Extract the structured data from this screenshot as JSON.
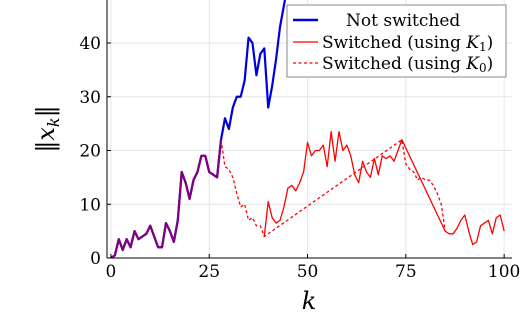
{
  "chart_data": {
    "type": "line",
    "xlabel": "k",
    "ylabel": "‖x_k‖",
    "xlim": [
      -1,
      102
    ],
    "ylim": [
      0,
      48
    ],
    "xticks": [
      0,
      25,
      50,
      75,
      100
    ],
    "yticks": [
      0,
      10,
      20,
      30,
      40
    ],
    "grid": true,
    "legend_position": "top-right",
    "series": [
      {
        "name": "Not switched",
        "color": "#0000dd",
        "style": "solid",
        "x": [
          0,
          1,
          2,
          3,
          4,
          5,
          6,
          7,
          8,
          9,
          10,
          11,
          12,
          13,
          14,
          15,
          16,
          17,
          18,
          19,
          20,
          21,
          22,
          23,
          24,
          25,
          26,
          27,
          28,
          29,
          30,
          31,
          32,
          33,
          34,
          35,
          36,
          37,
          38,
          39,
          40,
          41,
          42,
          43,
          44,
          45
        ],
        "y": [
          0,
          0.5,
          3.5,
          1.5,
          3.5,
          2,
          5,
          3.5,
          4,
          4.5,
          6,
          4,
          2,
          2,
          6.5,
          5,
          3,
          7,
          16,
          14,
          11,
          14.5,
          16,
          19,
          19,
          16,
          15.5,
          15,
          22,
          26,
          24,
          28,
          30,
          30,
          33,
          41,
          40,
          34,
          38,
          39,
          28,
          32,
          37,
          43,
          47,
          51
        ]
      },
      {
        "name": "Switched (using K1)",
        "color": "#ff0000",
        "style": "solid",
        "x": [
          39,
          40,
          41,
          42,
          43,
          44,
          45,
          46,
          47,
          48,
          49,
          50,
          51,
          52,
          53,
          54,
          55,
          56,
          57,
          58,
          59,
          60,
          61,
          62,
          63,
          64,
          65,
          66,
          67,
          68,
          69,
          70,
          71,
          72,
          73,
          74,
          85,
          86,
          87,
          88,
          89,
          90,
          91,
          92,
          93,
          94,
          95,
          96,
          97,
          98,
          99,
          100
        ],
        "y": [
          4,
          10.5,
          7.5,
          6.5,
          7,
          9.5,
          13,
          13.5,
          12.5,
          14,
          16,
          21.5,
          19,
          20,
          20,
          21,
          17,
          23.5,
          18,
          23.5,
          20,
          21,
          19,
          15.5,
          14,
          18,
          16,
          15,
          18.5,
          15.5,
          19,
          18.5,
          19,
          18,
          20,
          22,
          5,
          4.5,
          4.5,
          5.5,
          7,
          8,
          5,
          2.5,
          3,
          6,
          6.5,
          7,
          4.5,
          7.5,
          8,
          5
        ]
      },
      {
        "name": "Switched (using K0)",
        "color": "#ff0000",
        "style": "dashed",
        "x": [
          28,
          29,
          30,
          31,
          32,
          33,
          34,
          35,
          36,
          37,
          38,
          39,
          74,
          75,
          76,
          77,
          78,
          79,
          80,
          81,
          82,
          83,
          84,
          85
        ],
        "y": [
          22,
          17,
          16.5,
          15,
          12,
          9.5,
          10,
          7,
          7.5,
          6,
          6,
          4,
          22,
          17.5,
          16.5,
          16,
          14.5,
          15,
          14.5,
          14.5,
          13.5,
          12,
          10,
          5
        ]
      }
    ],
    "overlap": {
      "color": "#800080",
      "x": [
        0,
        1,
        2,
        3,
        4,
        5,
        6,
        7,
        8,
        9,
        10,
        11,
        12,
        13,
        14,
        15,
        16,
        17,
        18,
        19,
        20,
        21,
        22,
        23,
        24,
        25,
        26,
        27,
        28
      ],
      "y": [
        0,
        0.5,
        3.5,
        1.5,
        3.5,
        2,
        5,
        3.5,
        4,
        4.5,
        6,
        4,
        2,
        2,
        6.5,
        5,
        3,
        7,
        16,
        14,
        11,
        14.5,
        16,
        19,
        19,
        16,
        15.5,
        15,
        22
      ]
    },
    "legend": {
      "not_switched": "Not switched",
      "switched_k1_prefix": "Switched (using ",
      "switched_k1_symbol": "K",
      "switched_k1_sub": "1",
      "switched_k0_prefix": "Switched (using ",
      "switched_k0_symbol": "K",
      "switched_k0_sub": "0",
      "close_paren": ")"
    },
    "ylabel_parts": {
      "bars_left": "‖",
      "symbol": "x",
      "sub": "k",
      "bars_right": "‖"
    }
  }
}
